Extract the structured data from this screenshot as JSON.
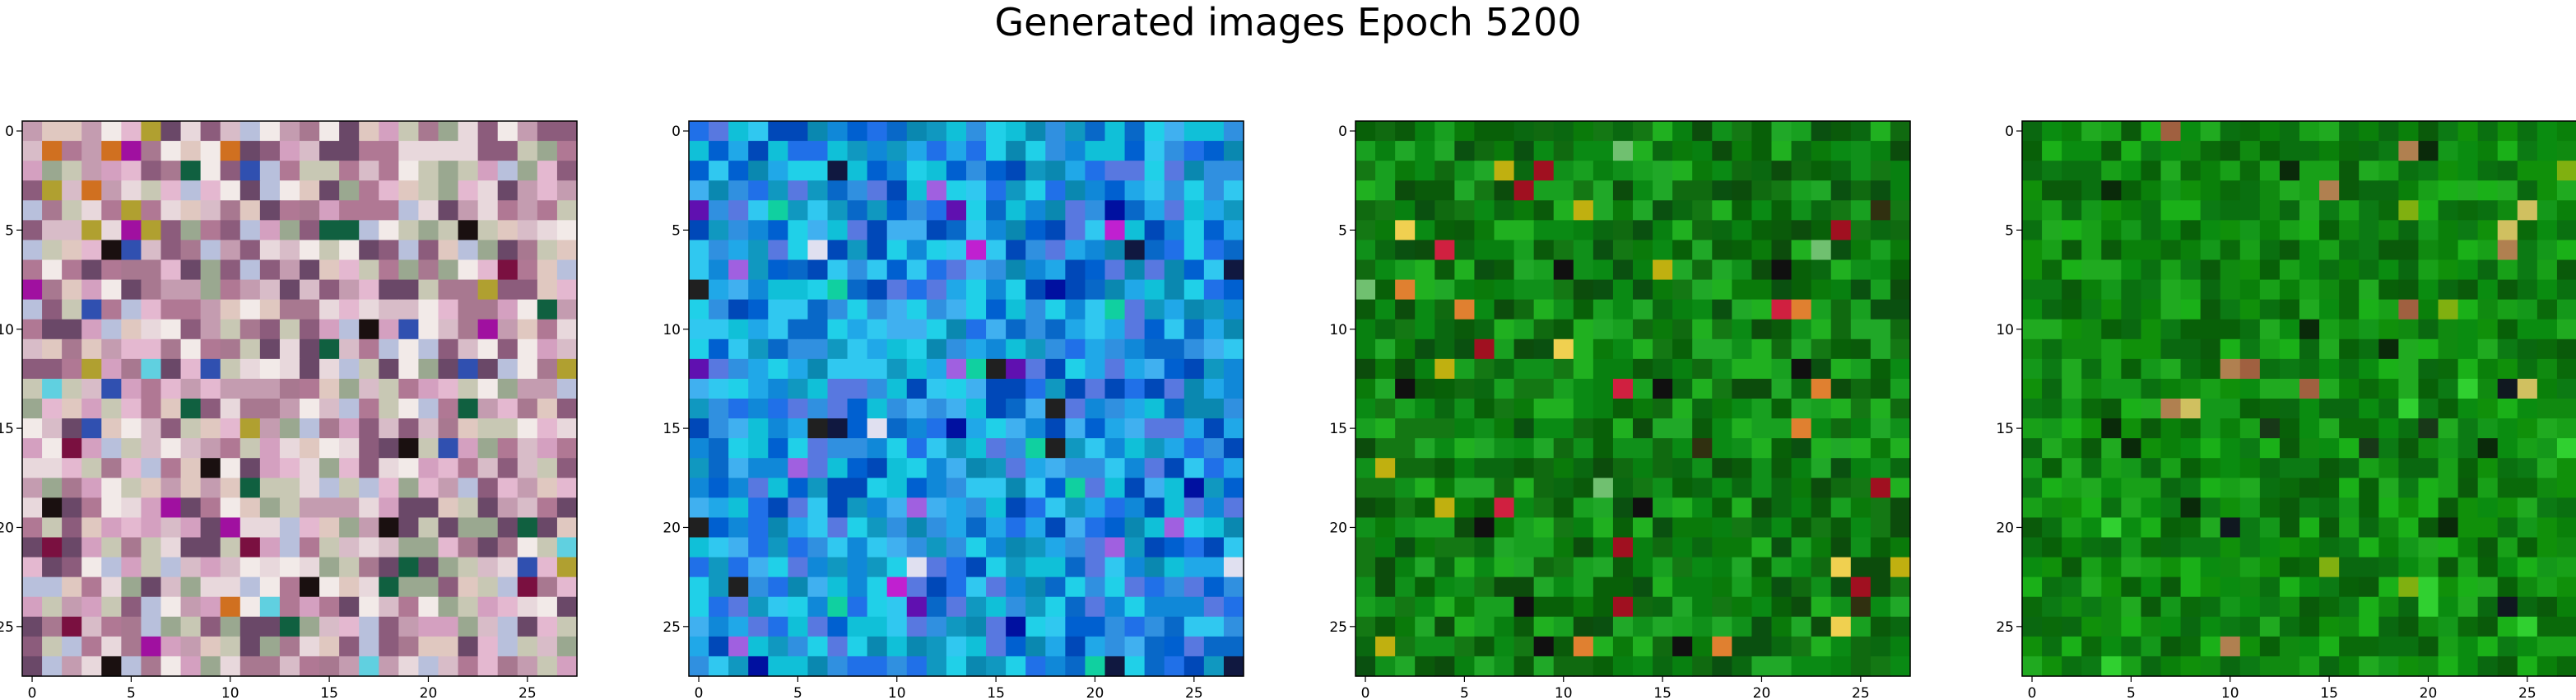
{
  "figure": {
    "title": "Generated images Epoch 5200"
  },
  "panels": [
    {
      "name": "generated-image-1",
      "palette": [
        "#e8d8dc",
        "#d8bcc8",
        "#c49cb0",
        "#b07894",
        "#e0c8c0",
        "#c8c8b4",
        "#f2eae8",
        "#d4a0c0",
        "#9aa890",
        "#6a4868",
        "#b8c0dc",
        "#e4b8d0",
        "#a87890",
        "#8c5c7c"
      ],
      "accents": [
        "#1a1010",
        "#7a1040",
        "#106040",
        "#b0a030",
        "#d07020",
        "#3050b0",
        "#a010a0",
        "#60d0e0"
      ]
    },
    {
      "name": "generated-image-2",
      "palette": [
        "#1088d8",
        "#20a8e8",
        "#0868c8",
        "#10c0d8",
        "#3090e0",
        "#0048b8",
        "#20d0e8",
        "#5878e0",
        "#1098c0",
        "#0060d0",
        "#40b0f0",
        "#2070e8",
        "#0a88b0",
        "#30c8f0"
      ],
      "accents": [
        "#101840",
        "#6010b0",
        "#c020d0",
        "#e0e0f0",
        "#0010a0",
        "#202020",
        "#a060e0",
        "#10d0a0"
      ]
    },
    {
      "name": "generated-image-3",
      "palette": [
        "#0a7a0a",
        "#0a5a0a",
        "#10901a",
        "#0a6810",
        "#18a020",
        "#086008",
        "#0c4c0c",
        "#20b020",
        "#0a8a14",
        "#106a10",
        "#088010",
        "#147814",
        "#0a5010",
        "#20a828"
      ],
      "accents": [
        "#d02040",
        "#e08030",
        "#c0b010",
        "#101010",
        "#f0d050",
        "#70c070",
        "#a01020",
        "#303010"
      ]
    },
    {
      "name": "generated-image-4",
      "palette": [
        "#0a800a",
        "#108a10",
        "#0a6a0a",
        "#18a018",
        "#0a7010",
        "#10900a",
        "#086008",
        "#20aa20",
        "#0c7a14",
        "#0a5a0a",
        "#14981a",
        "#0a8c10",
        "#1ab018",
        "#0a6810"
      ],
      "accents": [
        "#b08050",
        "#80b010",
        "#101820",
        "#d0c060",
        "#0a2a0a",
        "#30d030",
        "#a06040",
        "#183818"
      ]
    }
  ],
  "axes": {
    "x_ticks": [
      "0",
      "5",
      "10",
      "15",
      "20",
      "25"
    ],
    "y_ticks": [
      "0",
      "5",
      "10",
      "15",
      "20",
      "25"
    ]
  }
}
